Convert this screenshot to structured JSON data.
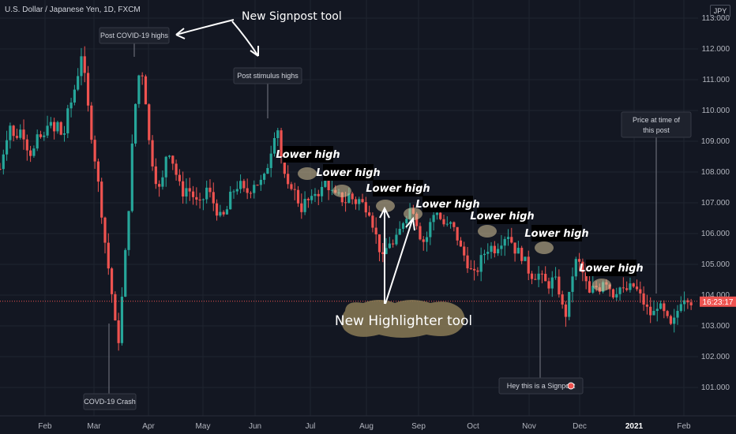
{
  "header": {
    "symbol_line": "U.S. Dollar / Japanese Yen, 1D, FXCM",
    "currency": "JPY"
  },
  "current_price_label": "16:23:17",
  "colors": {
    "background": "#131722",
    "up": "#26a69a",
    "down": "#ef5350",
    "grid": "#1f2430",
    "label_bg": "#1e222d",
    "highlighter": "#d8c79a",
    "price_line": "#ef5350"
  },
  "chart_data": {
    "type": "candlestick",
    "title": "U.S. Dollar / Japanese Yen, 1D, FXCM",
    "xlabel": "",
    "ylabel": "",
    "ylim": [
      100.5,
      113.5
    ],
    "yticks": [
      "113.000",
      "112.000",
      "111.000",
      "110.000",
      "109.000",
      "108.000",
      "107.000",
      "106.000",
      "105.000",
      "104.000",
      "103.000",
      "102.000",
      "101.000"
    ],
    "xticks": [
      "Feb",
      "Mar",
      "Apr",
      "May",
      "Jun",
      "Jul",
      "Aug",
      "Sep",
      "Oct",
      "Nov",
      "Dec",
      "2021",
      "Feb"
    ],
    "current_price": 103.8,
    "grid": true,
    "price_path": [
      {
        "t": 0.0,
        "p": 108.1
      },
      {
        "t": 0.3,
        "p": 108.9
      },
      {
        "t": 0.6,
        "p": 109.6
      },
      {
        "t": 0.9,
        "p": 109.0
      },
      {
        "t": 1.2,
        "p": 109.4
      },
      {
        "t": 1.5,
        "p": 109.2
      },
      {
        "t": 1.8,
        "p": 108.6
      },
      {
        "t": 2.1,
        "p": 108.7
      },
      {
        "t": 2.4,
        "p": 109.2
      },
      {
        "t": 2.7,
        "p": 109.0
      },
      {
        "t": 3.0,
        "p": 109.8
      },
      {
        "t": 3.3,
        "p": 109.2
      },
      {
        "t": 3.6,
        "p": 109.6
      },
      {
        "t": 3.9,
        "p": 109.0
      },
      {
        "t": 4.2,
        "p": 109.9
      },
      {
        "t": 4.5,
        "p": 110.4
      },
      {
        "t": 4.8,
        "p": 111.1
      },
      {
        "t": 5.1,
        "p": 112.0
      },
      {
        "t": 5.3,
        "p": 110.8
      },
      {
        "t": 5.6,
        "p": 109.5
      },
      {
        "t": 5.9,
        "p": 108.4
      },
      {
        "t": 6.2,
        "p": 107.2
      },
      {
        "t": 6.5,
        "p": 105.8
      },
      {
        "t": 6.8,
        "p": 104.6
      },
      {
        "t": 7.05,
        "p": 103.6
      },
      {
        "t": 7.3,
        "p": 102.2
      },
      {
        "t": 7.5,
        "p": 103.4
      },
      {
        "t": 7.7,
        "p": 104.8
      },
      {
        "t": 7.95,
        "p": 106.5
      },
      {
        "t": 8.2,
        "p": 108.8
      },
      {
        "t": 8.5,
        "p": 110.8
      },
      {
        "t": 8.75,
        "p": 111.5
      },
      {
        "t": 9.0,
        "p": 110.6
      },
      {
        "t": 9.25,
        "p": 109.0
      },
      {
        "t": 9.5,
        "p": 108.2
      },
      {
        "t": 9.75,
        "p": 107.6
      },
      {
        "t": 10.0,
        "p": 107.3
      },
      {
        "t": 10.25,
        "p": 108.5
      },
      {
        "t": 10.5,
        "p": 108.7
      },
      {
        "t": 10.75,
        "p": 108.3
      },
      {
        "t": 11.0,
        "p": 107.8
      },
      {
        "t": 11.3,
        "p": 107.3
      },
      {
        "t": 11.6,
        "p": 107.5
      },
      {
        "t": 11.9,
        "p": 107.3
      },
      {
        "t": 12.2,
        "p": 107.0
      },
      {
        "t": 12.5,
        "p": 106.9
      },
      {
        "t": 12.8,
        "p": 107.5
      },
      {
        "t": 13.1,
        "p": 107.2
      },
      {
        "t": 13.4,
        "p": 106.8
      },
      {
        "t": 13.7,
        "p": 106.5
      },
      {
        "t": 14.0,
        "p": 106.6
      },
      {
        "t": 14.3,
        "p": 107.2
      },
      {
        "t": 14.6,
        "p": 107.5
      },
      {
        "t": 14.9,
        "p": 107.6
      },
      {
        "t": 15.2,
        "p": 107.3
      },
      {
        "t": 15.5,
        "p": 107.4
      },
      {
        "t": 15.8,
        "p": 107.7
      },
      {
        "t": 16.1,
        "p": 107.6
      },
      {
        "t": 16.4,
        "p": 107.8
      },
      {
        "t": 16.7,
        "p": 108.4
      },
      {
        "t": 17.0,
        "p": 109.2
      },
      {
        "t": 17.2,
        "p": 109.6
      },
      {
        "t": 17.5,
        "p": 108.3
      },
      {
        "t": 17.8,
        "p": 107.4
      },
      {
        "t": 18.1,
        "p": 107.6
      },
      {
        "t": 18.4,
        "p": 107.2
      },
      {
        "t": 18.7,
        "p": 106.8
      },
      {
        "t": 19.0,
        "p": 107.1
      },
      {
        "t": 19.3,
        "p": 107.0
      },
      {
        "t": 19.6,
        "p": 107.4
      },
      {
        "t": 19.9,
        "p": 107.3
      },
      {
        "t": 20.2,
        "p": 107.8
      },
      {
        "t": 20.5,
        "p": 107.4
      },
      {
        "t": 20.8,
        "p": 107.2
      },
      {
        "t": 21.1,
        "p": 107.2
      },
      {
        "t": 21.4,
        "p": 107.0
      },
      {
        "t": 21.7,
        "p": 107.3
      },
      {
        "t": 22.0,
        "p": 107.0
      },
      {
        "t": 22.3,
        "p": 107.1
      },
      {
        "t": 22.6,
        "p": 106.9
      },
      {
        "t": 22.9,
        "p": 106.8
      },
      {
        "t": 23.2,
        "p": 106.2
      },
      {
        "t": 23.5,
        "p": 105.6
      },
      {
        "t": 23.8,
        "p": 105.1
      },
      {
        "t": 24.1,
        "p": 105.8
      },
      {
        "t": 24.4,
        "p": 105.6
      },
      {
        "t": 24.7,
        "p": 105.9
      },
      {
        "t": 25.0,
        "p": 106.4
      },
      {
        "t": 25.3,
        "p": 106.7
      },
      {
        "t": 25.6,
        "p": 106.9
      },
      {
        "t": 25.9,
        "p": 106.3
      },
      {
        "t": 26.2,
        "p": 105.7
      },
      {
        "t": 26.5,
        "p": 105.9
      },
      {
        "t": 26.8,
        "p": 106.5
      },
      {
        "t": 27.1,
        "p": 106.8
      },
      {
        "t": 27.4,
        "p": 106.4
      },
      {
        "t": 27.7,
        "p": 106.2
      },
      {
        "t": 28.0,
        "p": 106.3
      },
      {
        "t": 28.3,
        "p": 106.0
      },
      {
        "t": 28.6,
        "p": 105.5
      },
      {
        "t": 28.9,
        "p": 105.2
      },
      {
        "t": 29.2,
        "p": 104.8
      },
      {
        "t": 29.5,
        "p": 104.6
      },
      {
        "t": 29.8,
        "p": 105.1
      },
      {
        "t": 30.1,
        "p": 105.4
      },
      {
        "t": 30.4,
        "p": 105.6
      },
      {
        "t": 30.7,
        "p": 105.5
      },
      {
        "t": 31.0,
        "p": 105.7
      },
      {
        "t": 31.3,
        "p": 105.9
      },
      {
        "t": 31.6,
        "p": 106.0
      },
      {
        "t": 31.9,
        "p": 105.5
      },
      {
        "t": 32.2,
        "p": 105.4
      },
      {
        "t": 32.5,
        "p": 105.2
      },
      {
        "t": 32.8,
        "p": 104.8
      },
      {
        "t": 33.1,
        "p": 104.6
      },
      {
        "t": 33.4,
        "p": 104.7
      },
      {
        "t": 33.7,
        "p": 104.5
      },
      {
        "t": 34.0,
        "p": 104.3
      },
      {
        "t": 34.3,
        "p": 104.5
      },
      {
        "t": 34.6,
        "p": 104.4
      },
      {
        "t": 34.9,
        "p": 103.6
      },
      {
        "t": 35.2,
        "p": 103.3
      },
      {
        "t": 35.4,
        "p": 104.3
      },
      {
        "t": 35.7,
        "p": 105.1
      },
      {
        "t": 36.0,
        "p": 105.0
      },
      {
        "t": 36.3,
        "p": 104.5
      },
      {
        "t": 36.6,
        "p": 104.0
      },
      {
        "t": 36.9,
        "p": 104.3
      },
      {
        "t": 37.2,
        "p": 104.2
      },
      {
        "t": 37.5,
        "p": 104.6
      },
      {
        "t": 37.8,
        "p": 104.3
      },
      {
        "t": 38.1,
        "p": 104.0
      },
      {
        "t": 38.4,
        "p": 104.3
      },
      {
        "t": 38.7,
        "p": 104.1
      },
      {
        "t": 39.0,
        "p": 104.2
      },
      {
        "t": 39.3,
        "p": 104.3
      },
      {
        "t": 39.6,
        "p": 104.1
      },
      {
        "t": 39.9,
        "p": 103.8
      },
      {
        "t": 40.2,
        "p": 103.5
      },
      {
        "t": 40.5,
        "p": 103.3
      },
      {
        "t": 40.8,
        "p": 103.7
      },
      {
        "t": 41.1,
        "p": 103.5
      },
      {
        "t": 41.4,
        "p": 103.2
      },
      {
        "t": 41.7,
        "p": 102.9
      },
      {
        "t": 42.0,
        "p": 103.4
      },
      {
        "t": 42.3,
        "p": 103.9
      },
      {
        "t": 42.6,
        "p": 104.0
      },
      {
        "t": 42.9,
        "p": 103.8
      }
    ],
    "annotations": [
      {
        "text": "Post COVID-19 highs",
        "kind": "signpost"
      },
      {
        "text": "Post stimulus highs",
        "kind": "signpost"
      },
      {
        "text": "COVD-19 Crash",
        "kind": "signpost"
      },
      {
        "text": "Hey this is a Signpost",
        "kind": "signpost"
      },
      {
        "text": "Price at time of this post",
        "kind": "signpost"
      },
      {
        "text": "Lower high",
        "kind": "label"
      },
      {
        "text": "Lower high",
        "kind": "label"
      },
      {
        "text": "Lower high",
        "kind": "label"
      },
      {
        "text": "Lower high",
        "kind": "label"
      },
      {
        "text": "Lower high",
        "kind": "label"
      },
      {
        "text": "Lower high",
        "kind": "label"
      },
      {
        "text": "Lower high",
        "kind": "label"
      },
      {
        "text": "New Signpost tool",
        "kind": "callout"
      },
      {
        "text": "New Highlighter tool",
        "kind": "callout"
      }
    ]
  }
}
